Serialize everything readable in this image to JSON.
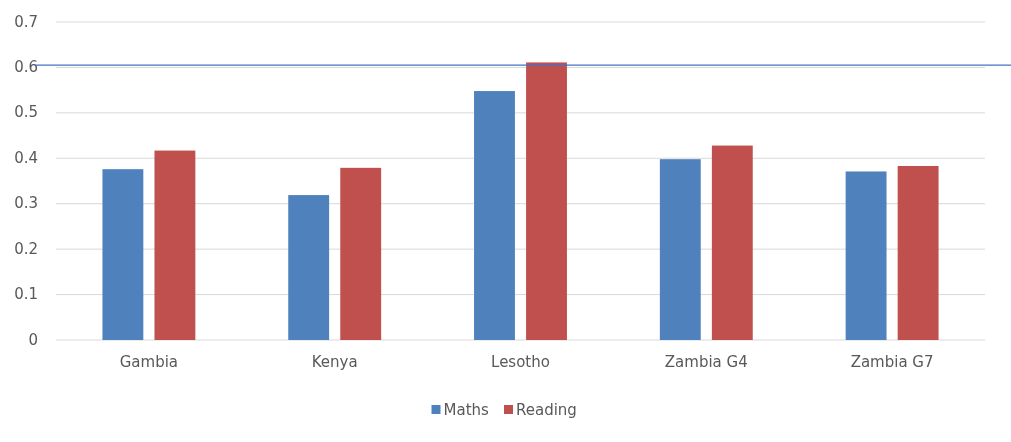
{
  "chart_data": {
    "type": "bar",
    "categories": [
      "Gambia",
      "Kenya",
      "Lesotho",
      "Zambia G4",
      "Zambia G7"
    ],
    "series": [
      {
        "name": "Maths",
        "color": "#4f81bd",
        "values": [
          0.376,
          0.319,
          0.548,
          0.398,
          0.371
        ]
      },
      {
        "name": "Reading",
        "color": "#c0504d",
        "values": [
          0.417,
          0.379,
          0.611,
          0.428,
          0.383
        ]
      }
    ],
    "ylim": [
      0,
      0.7
    ],
    "yticks": [
      0,
      0.1,
      0.2,
      0.3,
      0.4,
      0.5,
      0.6,
      0.7
    ],
    "grid": "y",
    "legend": "bottom",
    "ref_lines": [
      {
        "axis": "y",
        "value": 0.605,
        "color": "#4472c4"
      }
    ]
  }
}
